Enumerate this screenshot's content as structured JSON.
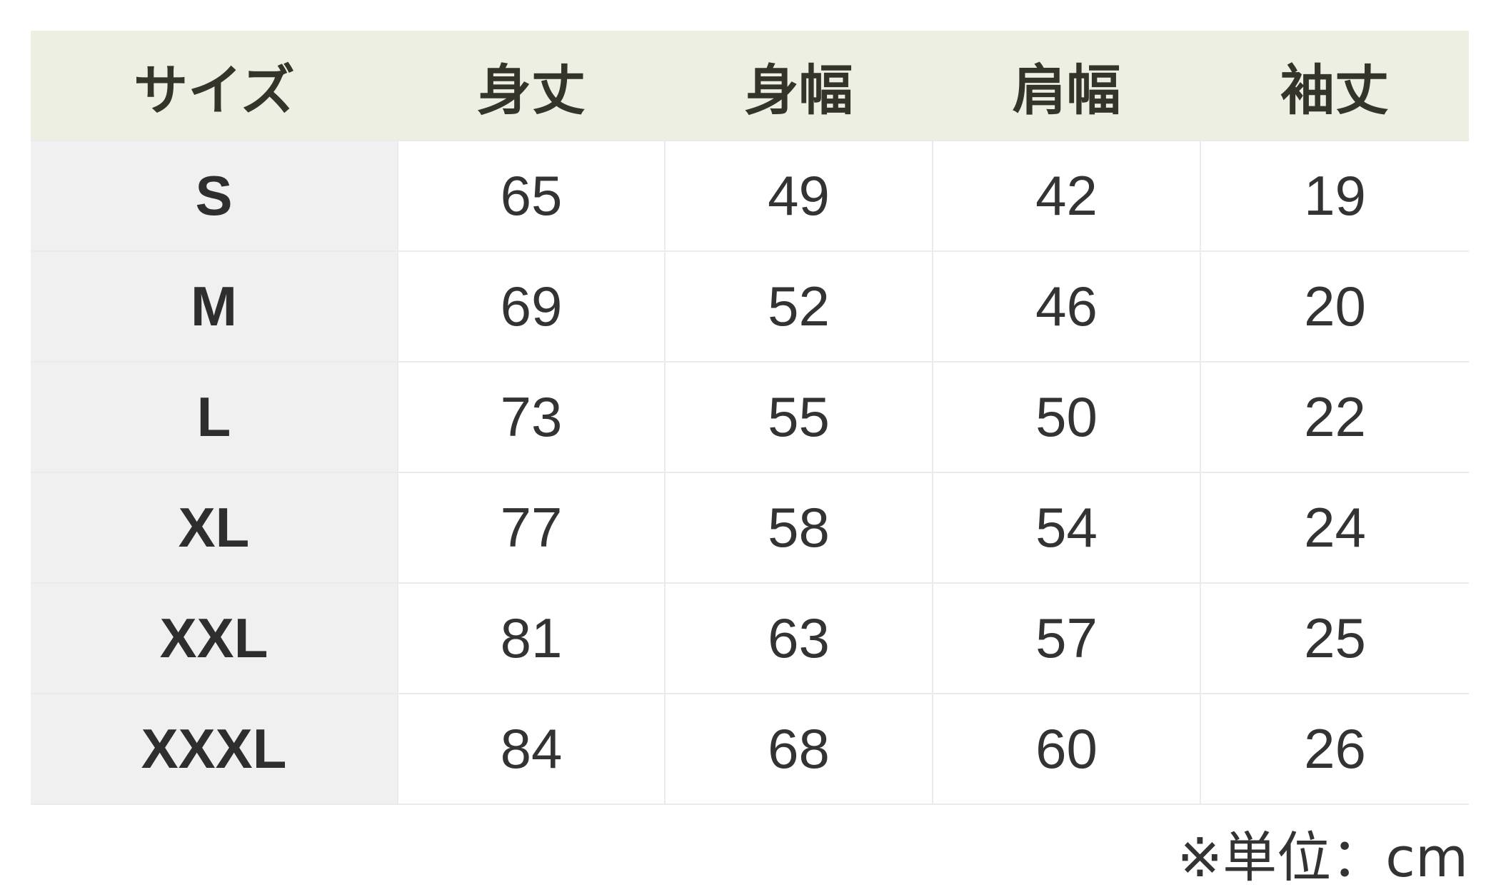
{
  "headers": [
    "サイズ",
    "身丈",
    "身幅",
    "肩幅",
    "袖丈"
  ],
  "rows": [
    [
      "S",
      "65",
      "49",
      "42",
      "19"
    ],
    [
      "M",
      "69",
      "52",
      "46",
      "20"
    ],
    [
      "L",
      "73",
      "55",
      "50",
      "22"
    ],
    [
      "XL",
      "77",
      "58",
      "54",
      "24"
    ],
    [
      "XXL",
      "81",
      "63",
      "57",
      "25"
    ],
    [
      "XXXL",
      "84",
      "68",
      "60",
      "26"
    ]
  ],
  "note": "※単位：cm",
  "colors": {
    "header_bg": "#edefe2",
    "size_column_bg": "#f0f0f0",
    "text": "#333333"
  }
}
